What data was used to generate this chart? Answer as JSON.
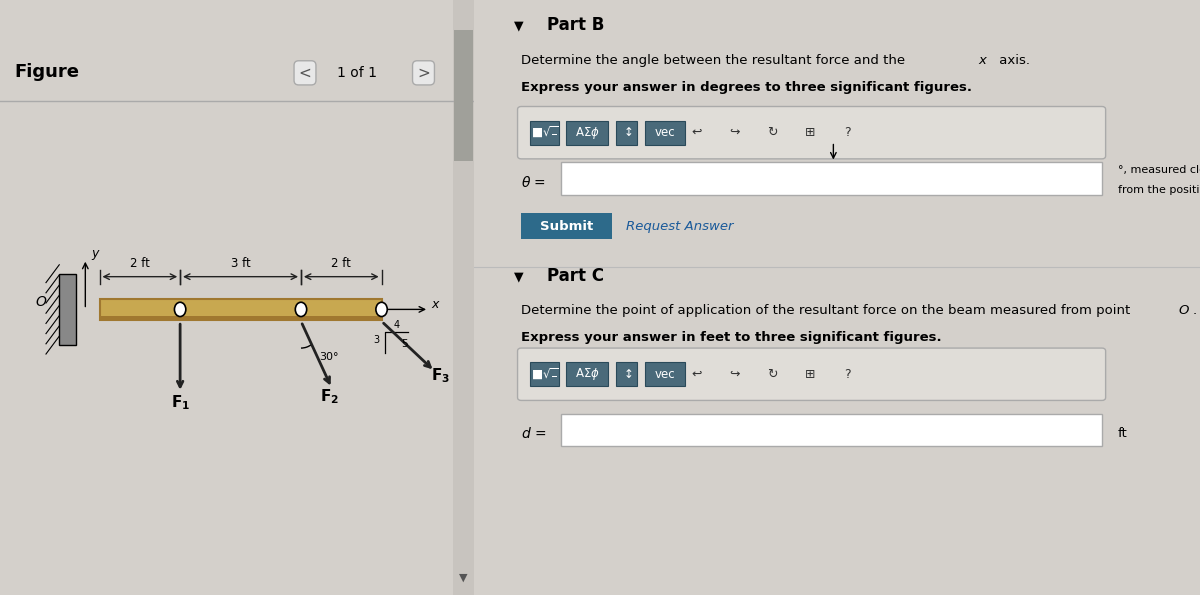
{
  "bg_color": "#d4d0cb",
  "figure_label": "Figure",
  "nav_text": "1 of 1",
  "part_b_title": "Part B",
  "part_b_line1": "Determine the angle between the resultant force and the ",
  "part_b_x_italic": "x",
  "part_b_line1_end": " axis.",
  "part_b_bold": "Express your answer in degrees to three significant figures.",
  "theta_label": "θ =",
  "theta_suffix": "°, measured clockwise",
  "theta_suffix2": "from the positive x axis",
  "submit_text": "Submit",
  "request_text": "Request Answer",
  "part_c_title": "Part C",
  "part_c_line1": "Determine the point of application of the resultant force on the beam measured from point ",
  "part_c_O": "O",
  "part_c_bold": "Express your answer in feet to three significant figures.",
  "d_label": "d =",
  "d_suffix": "ft",
  "beam_color": "#c8a850",
  "beam_color2": "#a07830",
  "arrow_color": "#222222",
  "dim_color": "#222222",
  "btn_color": "#4a6a7a",
  "btn_edge_color": "#2a4a5a",
  "submit_color": "#2d6a8a",
  "toolbar_bg": "#e0ddd8",
  "input_box_color": "white",
  "scrollbar_bg": "#c8c4bf",
  "scrollbar_thumb": "#a0a09a"
}
